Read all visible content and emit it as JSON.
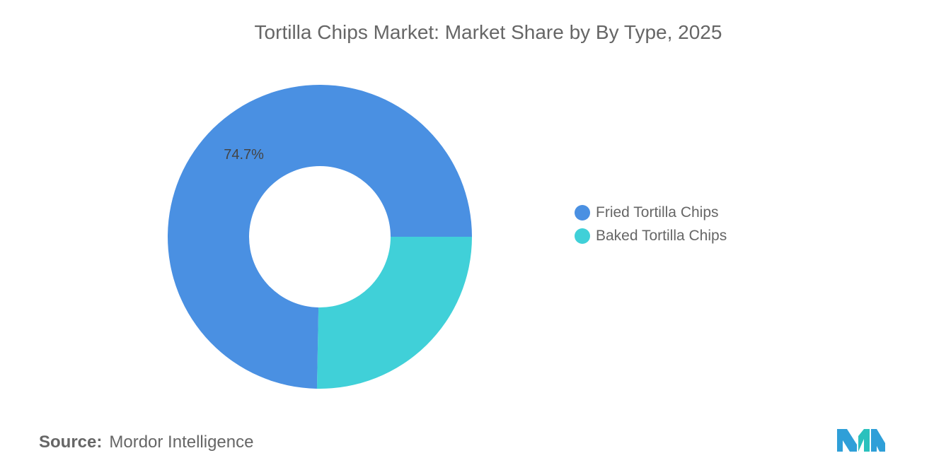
{
  "chart_data": {
    "type": "pie",
    "variant": "donut",
    "title": "Tortilla Chips Market: Market Share by By Type, 2025",
    "categories": [
      "Fried Tortilla Chips",
      "Baked Tortilla Chips"
    ],
    "values": [
      74.7,
      25.3
    ],
    "data_labels": [
      "74.7%",
      ""
    ],
    "colors": [
      "#4a90e2",
      "#40d0d8"
    ],
    "legend_placement": "right"
  },
  "source": {
    "label": "Source:",
    "value": "Mordor Intelligence"
  },
  "brand": {
    "logo_icon": "mordor-intelligence-logo-icon",
    "colors": [
      "#2f9fd8",
      "#2bc1bd"
    ]
  }
}
